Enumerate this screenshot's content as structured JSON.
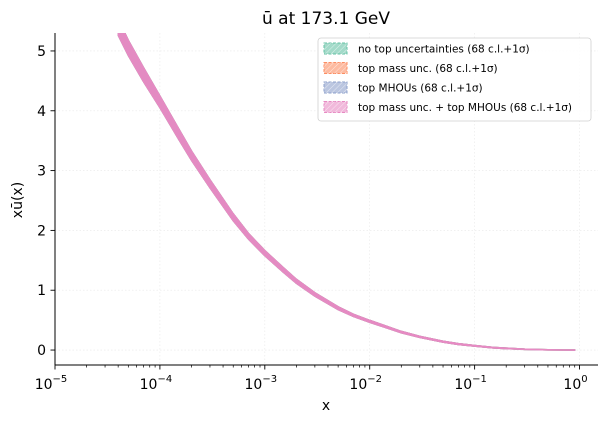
{
  "chart_data": {
    "type": "line",
    "title": "ū at 173.1 GeV",
    "xlabel": "x",
    "ylabel": "xū(x)",
    "xscale": "log",
    "xlim": [
      1e-05,
      1.5
    ],
    "ylim": [
      -0.25,
      5.3
    ],
    "xticks": [
      {
        "value": 1e-05,
        "base": "10",
        "exp": "−5"
      },
      {
        "value": 0.0001,
        "base": "10",
        "exp": "−4"
      },
      {
        "value": 0.001,
        "base": "10",
        "exp": "−3"
      },
      {
        "value": 0.01,
        "base": "10",
        "exp": "−2"
      },
      {
        "value": 0.1,
        "base": "10",
        "exp": "−1"
      },
      {
        "value": 1,
        "base": "10",
        "exp": "0"
      }
    ],
    "yticks": [
      0,
      1,
      2,
      3,
      4,
      5
    ],
    "grid": true,
    "legend_position": "top-right",
    "x": [
      4e-05,
      5e-05,
      7e-05,
      0.0001,
      0.00015,
      0.0002,
      0.0003,
      0.0005,
      0.0007,
      0.001,
      0.0015,
      0.002,
      0.003,
      0.005,
      0.007,
      0.01,
      0.02,
      0.03,
      0.05,
      0.07,
      0.1,
      0.15,
      0.2,
      0.3,
      0.5,
      0.7,
      0.9
    ],
    "series": [
      {
        "name": "no top uncertainties (68 c.l.+1σ)",
        "color": "#66c2a5",
        "values": [
          5.4,
          5.05,
          4.6,
          4.15,
          3.62,
          3.25,
          2.78,
          2.22,
          1.9,
          1.62,
          1.34,
          1.15,
          0.93,
          0.7,
          0.58,
          0.48,
          0.3,
          0.22,
          0.14,
          0.1,
          0.07,
          0.04,
          0.028,
          0.013,
          0.004,
          0.001,
          0.0
        ]
      },
      {
        "name": "top mass unc. (68 c.l.+1σ)",
        "color": "#fc8d62",
        "values": [
          5.4,
          5.05,
          4.6,
          4.15,
          3.62,
          3.25,
          2.78,
          2.22,
          1.9,
          1.62,
          1.34,
          1.15,
          0.93,
          0.7,
          0.58,
          0.48,
          0.3,
          0.22,
          0.14,
          0.1,
          0.07,
          0.04,
          0.028,
          0.013,
          0.004,
          0.001,
          0.0
        ]
      },
      {
        "name": "top MHOUs (68 c.l.+1σ)",
        "color": "#8da0cb",
        "values": [
          5.4,
          5.05,
          4.6,
          4.15,
          3.62,
          3.25,
          2.78,
          2.22,
          1.9,
          1.62,
          1.34,
          1.15,
          0.93,
          0.7,
          0.58,
          0.48,
          0.3,
          0.22,
          0.14,
          0.1,
          0.07,
          0.04,
          0.028,
          0.013,
          0.004,
          0.001,
          0.0
        ]
      },
      {
        "name": "top mass unc. + top MHOUs (68 c.l.+1σ)",
        "color": "#e78ac3",
        "values": [
          5.4,
          5.05,
          4.6,
          4.15,
          3.62,
          3.25,
          2.78,
          2.22,
          1.9,
          1.62,
          1.34,
          1.15,
          0.93,
          0.7,
          0.58,
          0.48,
          0.3,
          0.22,
          0.14,
          0.1,
          0.07,
          0.04,
          0.028,
          0.013,
          0.004,
          0.001,
          0.0
        ]
      }
    ],
    "band_halfwidth": [
      0.14,
      0.13,
      0.12,
      0.1,
      0.09,
      0.08,
      0.07,
      0.06,
      0.05,
      0.045,
      0.04,
      0.035,
      0.03,
      0.025,
      0.02,
      0.018,
      0.014,
      0.012,
      0.01,
      0.009,
      0.008,
      0.007,
      0.006,
      0.005,
      0.004,
      0.003,
      0.003
    ]
  }
}
